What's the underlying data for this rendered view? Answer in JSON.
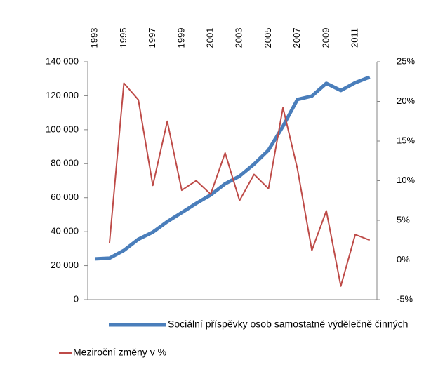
{
  "chart_data": {
    "type": "line",
    "categories": [
      "1993",
      null,
      "1995",
      null,
      "1997",
      null,
      "1999",
      null,
      "2001",
      null,
      "2003",
      null,
      "2005",
      null,
      "2007",
      null,
      "2009",
      null,
      "2011",
      null
    ],
    "series": [
      {
        "name": "Sociální příspěvky osob samostatně výdělečně činných",
        "color": "#4a7ebb",
        "values": [
          24000,
          24400,
          29000,
          35500,
          39700,
          45900,
          51200,
          56600,
          61600,
          68200,
          72700,
          79700,
          88000,
          102000,
          117800,
          119800,
          127300,
          123100,
          127700,
          131000
        ]
      },
      {
        "name": "Meziroční změny v %",
        "color": "#be4b48",
        "axis": "y2",
        "values": [
          null,
          2.1,
          22.3,
          20.2,
          9.4,
          17.5,
          8.8,
          10.0,
          8.3,
          13.5,
          7.5,
          10.8,
          9.0,
          19.2,
          11.5,
          1.2,
          6.2,
          -3.3,
          3.2,
          2.5
        ]
      }
    ],
    "ylim": [
      0,
      140000
    ],
    "yticks": [
      0,
      {
        "value": 20000,
        "label": "20 000"
      },
      {
        "value": 40000,
        "label": "40 000"
      },
      {
        "value": 60000,
        "label": "60 000"
      },
      {
        "value": 80000,
        "label": "80 000"
      },
      {
        "value": 100000,
        "label": "100 000"
      },
      {
        "value": 120000,
        "label": "120 000"
      },
      {
        "value": 140000,
        "label": "140 000"
      }
    ],
    "y2lim": [
      -5,
      25
    ],
    "y2ticks": [
      {
        "value": -5,
        "label": "-5%"
      },
      {
        "value": 0,
        "label": "0%"
      },
      {
        "value": 5,
        "label": "5%"
      },
      {
        "value": 10,
        "label": "10%"
      },
      {
        "value": 15,
        "label": "15%"
      },
      {
        "value": 20,
        "label": "20%"
      },
      {
        "value": 25,
        "label": "25%"
      }
    ],
    "grid": false
  }
}
